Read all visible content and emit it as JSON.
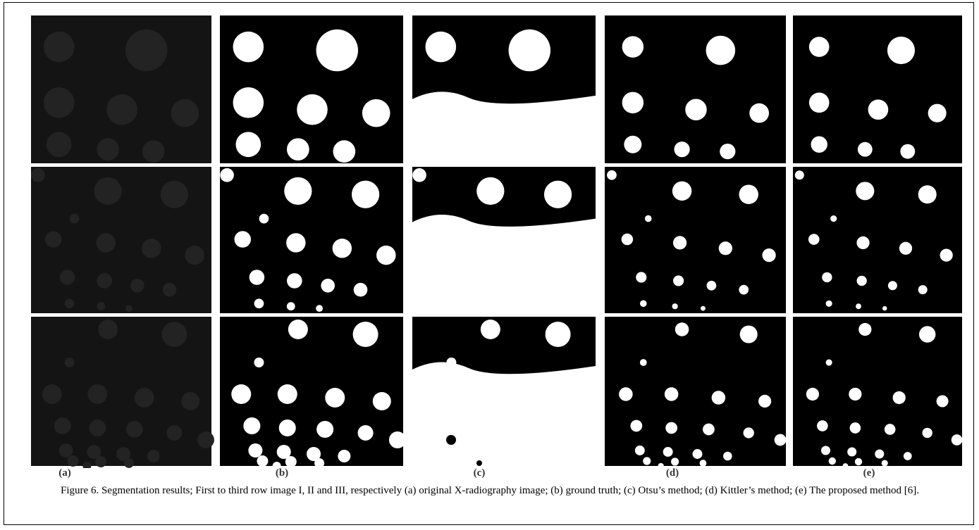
{
  "figure": {
    "panel_labels": [
      "(a)",
      "(b)",
      "(c)",
      "(d)",
      "(e)"
    ],
    "caption": "Figure 6. Segmentation results; First to third row image I, II and III, respectively (a) original X-radiography image; (b) ground truth; (c) Otsu’s method; (d) Kittler’s method; (e) The proposed method [6]."
  }
}
